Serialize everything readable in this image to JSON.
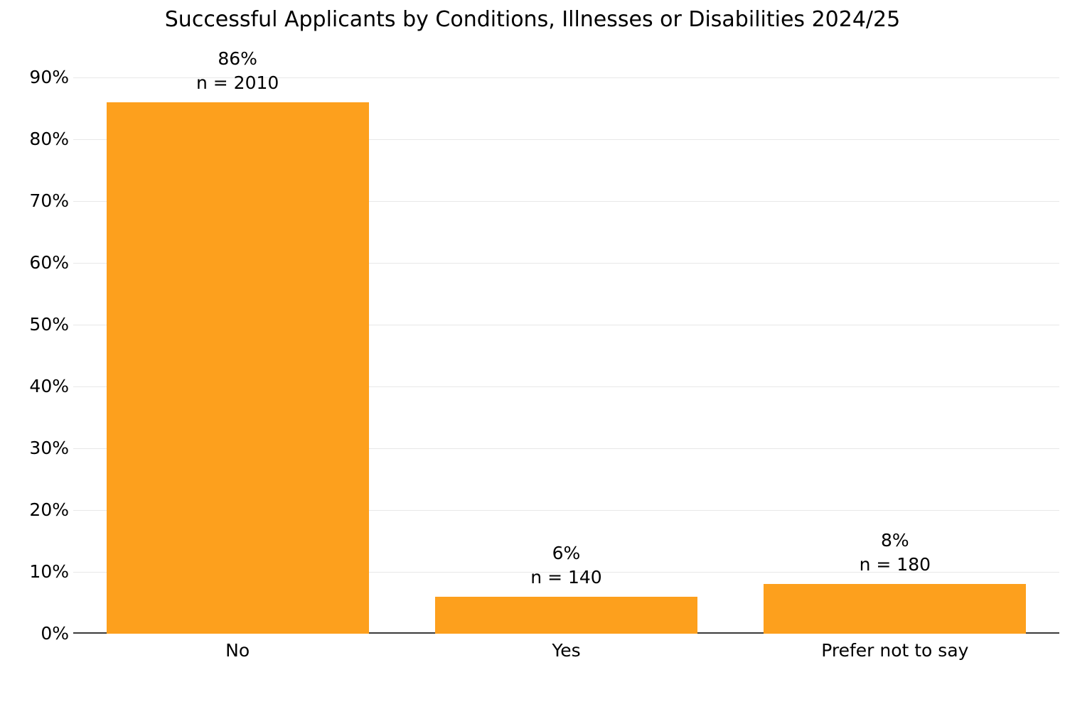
{
  "chart_data": {
    "type": "bar",
    "title": "Successful Applicants by Conditions, Illnesses or Disabilities 2024/25",
    "categories": [
      "No",
      "Yes",
      "Prefer not to say"
    ],
    "values": [
      86,
      6,
      8
    ],
    "counts": [
      2010,
      140,
      180
    ],
    "value_labels": [
      "86%",
      "6%",
      "8%"
    ],
    "count_labels": [
      "n = 2010",
      "n = 140",
      "n = 180"
    ],
    "xlabel": "",
    "ylabel": "",
    "ylim": [
      0,
      90
    ],
    "ytick_step": 10,
    "ytick_labels": [
      "0%",
      "10%",
      "20%",
      "30%",
      "40%",
      "50%",
      "60%",
      "70%",
      "80%",
      "90%"
    ],
    "grid": true,
    "legend": "none",
    "colors": {
      "bar": "#FDA01D",
      "gridline": "#E8E8E8",
      "axis_line": "#3A3A3A",
      "text": "#000000",
      "background": "#FFFFFF"
    }
  }
}
